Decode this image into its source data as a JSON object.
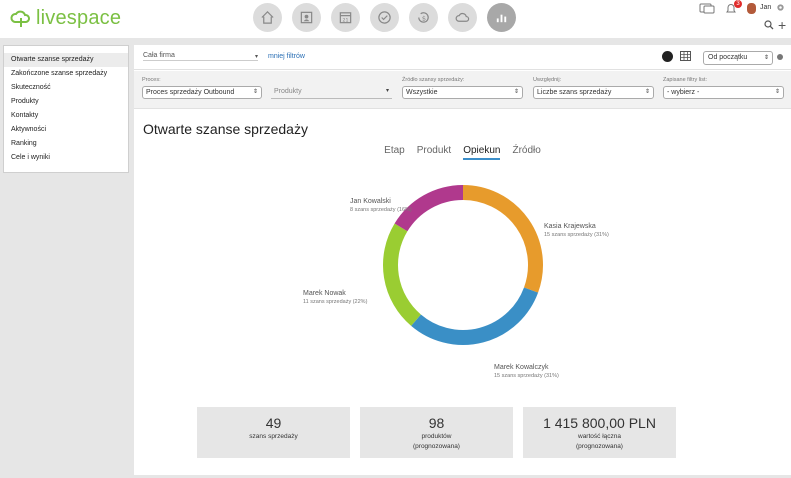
{
  "app": {
    "logo_text": "livespace"
  },
  "topnav": {
    "icons": [
      "home-icon",
      "contacts-icon",
      "calendar-icon",
      "tasks-icon",
      "deals-icon",
      "cloud-icon",
      "reports-icon"
    ],
    "active": "reports-icon"
  },
  "user": {
    "name": "Jan",
    "notifications": "3"
  },
  "sidebar": {
    "items": [
      {
        "label": "Otwarte szanse sprzedaży"
      },
      {
        "label": "Zakończone szanse sprzedaży"
      },
      {
        "label": "Skuteczność"
      },
      {
        "label": "Produkty"
      },
      {
        "label": "Kontakty"
      },
      {
        "label": "Aktywności"
      },
      {
        "label": "Ranking"
      },
      {
        "label": "Cele i wyniki"
      }
    ]
  },
  "filters": {
    "company": "Cała firma",
    "less_filters": "mniej filtrów",
    "period": "Od początku",
    "process_label": "Proces:",
    "process_value": "Proces sprzedaży Outbound",
    "products_placeholder": "Produkty",
    "source_label": "Źródło szansy sprzedaży:",
    "source_value": "Wszystkie",
    "include_label": "Uwzględnij:",
    "include_value": "Liczbe szans sprzedaży",
    "saved_label": "Zapisane filtry list:",
    "saved_value": "- wybierz -"
  },
  "main": {
    "title": "Otwarte szanse sprzedaży",
    "tabs": [
      {
        "label": "Etap"
      },
      {
        "label": "Produkt"
      },
      {
        "label": "Opiekun"
      },
      {
        "label": "Źródło"
      }
    ],
    "active_tab": "Opiekun"
  },
  "chart_data": {
    "type": "pie",
    "donut": true,
    "series": [
      {
        "name": "Kasia Krajewska",
        "value": 15,
        "label": "15 szans sprzedaży (31%)",
        "percent": 31,
        "color": "#e79b2c"
      },
      {
        "name": "Marek Kowalczyk",
        "value": 15,
        "label": "15 szans sprzedaży (31%)",
        "percent": 31,
        "color": "#3a8fc6"
      },
      {
        "name": "Marek Nowak",
        "value": 11,
        "label": "11 szans sprzedaży (22%)",
        "percent": 22,
        "color": "#9acd32"
      },
      {
        "name": "Jan Kowalski",
        "value": 8,
        "label": "8 szans sprzedaży (16%)",
        "percent": 16,
        "color": "#b0398d"
      }
    ]
  },
  "stats": [
    {
      "value": "49",
      "label1": "szans sprzedaży",
      "label2": ""
    },
    {
      "value": "98",
      "label1": "produktów",
      "label2": "(prognozowana)"
    },
    {
      "value": "1 415 800,00 PLN",
      "label1": "wartość łączna",
      "label2": "(prognozowana)"
    }
  ]
}
